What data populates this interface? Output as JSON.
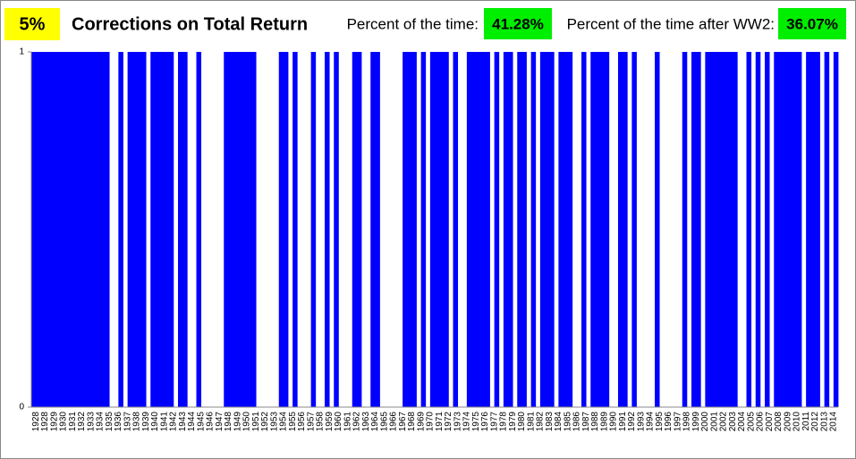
{
  "chart_data": {
    "type": "bar",
    "badge": "5%",
    "title": "Corrections on Total Return",
    "annotations": [
      {
        "text": "Percent of the time:",
        "value_label": "41.28%"
      },
      {
        "text": "Percent of the time after WW2:",
        "value_label": "36.07%"
      }
    ],
    "color": "#0000ff",
    "ylim": [
      0,
      1
    ],
    "yticks": [
      0,
      1
    ],
    "categories": [
      "1928",
      null,
      "1928",
      null,
      "1929",
      null,
      "1930",
      null,
      "1931",
      null,
      "1932",
      null,
      "1933",
      null,
      "1934",
      null,
      "1935",
      null,
      "1936",
      null,
      "1937",
      null,
      "1938",
      null,
      "1939",
      null,
      "1940",
      null,
      "1941",
      null,
      "1942",
      null,
      "1943",
      null,
      "1944",
      null,
      "1945",
      null,
      "1946",
      null,
      "1947",
      null,
      "1948",
      null,
      "1949",
      null,
      "1950",
      null,
      "1951",
      null,
      "1952",
      null,
      "1953",
      null,
      "1954",
      null,
      "1955",
      null,
      "1956",
      null,
      "1957",
      null,
      "1958",
      null,
      "1959",
      null,
      "1960",
      null,
      "1961",
      null,
      "1962",
      null,
      "1963",
      null,
      "1964",
      null,
      "1965",
      null,
      "1966",
      null,
      "1967",
      null,
      "1968",
      null,
      "1969",
      null,
      "1970",
      null,
      "1971",
      null,
      "1972",
      null,
      "1973",
      null,
      "1974",
      null,
      "1975",
      null,
      "1976",
      null,
      "1977",
      null,
      "1978",
      null,
      "1979",
      null,
      "1980",
      null,
      "1981",
      null,
      "1982",
      null,
      "1983",
      null,
      "1984",
      null,
      "1985",
      null,
      "1986",
      null,
      "1987",
      null,
      "1988",
      null,
      "1989",
      null,
      "1990",
      null,
      "1991",
      null,
      "1992",
      null,
      "1993",
      null,
      "1994",
      null,
      "1995",
      null,
      "1996",
      null,
      "1997",
      null,
      "1998",
      null,
      "1999",
      null,
      "2000",
      null,
      "2001",
      null,
      "2002",
      null,
      "2003",
      null,
      "2004",
      null,
      "2005",
      null,
      "2006",
      null,
      "2007",
      null,
      "2008",
      null,
      "2009",
      null,
      "2010",
      null,
      "2011",
      null,
      "2012",
      null,
      "2013",
      null,
      "2014",
      null
    ],
    "values": [
      1,
      1,
      1,
      1,
      1,
      1,
      1,
      1,
      1,
      1,
      1,
      1,
      1,
      1,
      1,
      1,
      1,
      0,
      0,
      1,
      0,
      1,
      1,
      1,
      1,
      0,
      1,
      1,
      1,
      1,
      1,
      0,
      1,
      1,
      0,
      0,
      1,
      0,
      0,
      0,
      0,
      0,
      1,
      1,
      1,
      1,
      1,
      1,
      1,
      0,
      0,
      0,
      0,
      0,
      1,
      1,
      0,
      1,
      0,
      0,
      0,
      1,
      0,
      0,
      1,
      0,
      1,
      0,
      0,
      0,
      1,
      1,
      0,
      0,
      1,
      1,
      0,
      0,
      0,
      0,
      0,
      1,
      1,
      1,
      0,
      1,
      0,
      1,
      1,
      1,
      1,
      0,
      1,
      0,
      0,
      1,
      1,
      1,
      1,
      1,
      0,
      1,
      0,
      1,
      1,
      0,
      1,
      1,
      0,
      1,
      0,
      1,
      1,
      1,
      0,
      1,
      1,
      1,
      0,
      0,
      1,
      0,
      1,
      1,
      1,
      1,
      0,
      0,
      1,
      1,
      0,
      1,
      0,
      0,
      0,
      0,
      1,
      0,
      0,
      0,
      0,
      0,
      1,
      0,
      1,
      1,
      0,
      1,
      1,
      1,
      1,
      1,
      1,
      1,
      0,
      0,
      1,
      0,
      1,
      0,
      1,
      0,
      1,
      1,
      1,
      1,
      1,
      1,
      0,
      1,
      1,
      1,
      0,
      1,
      0,
      1
    ]
  }
}
